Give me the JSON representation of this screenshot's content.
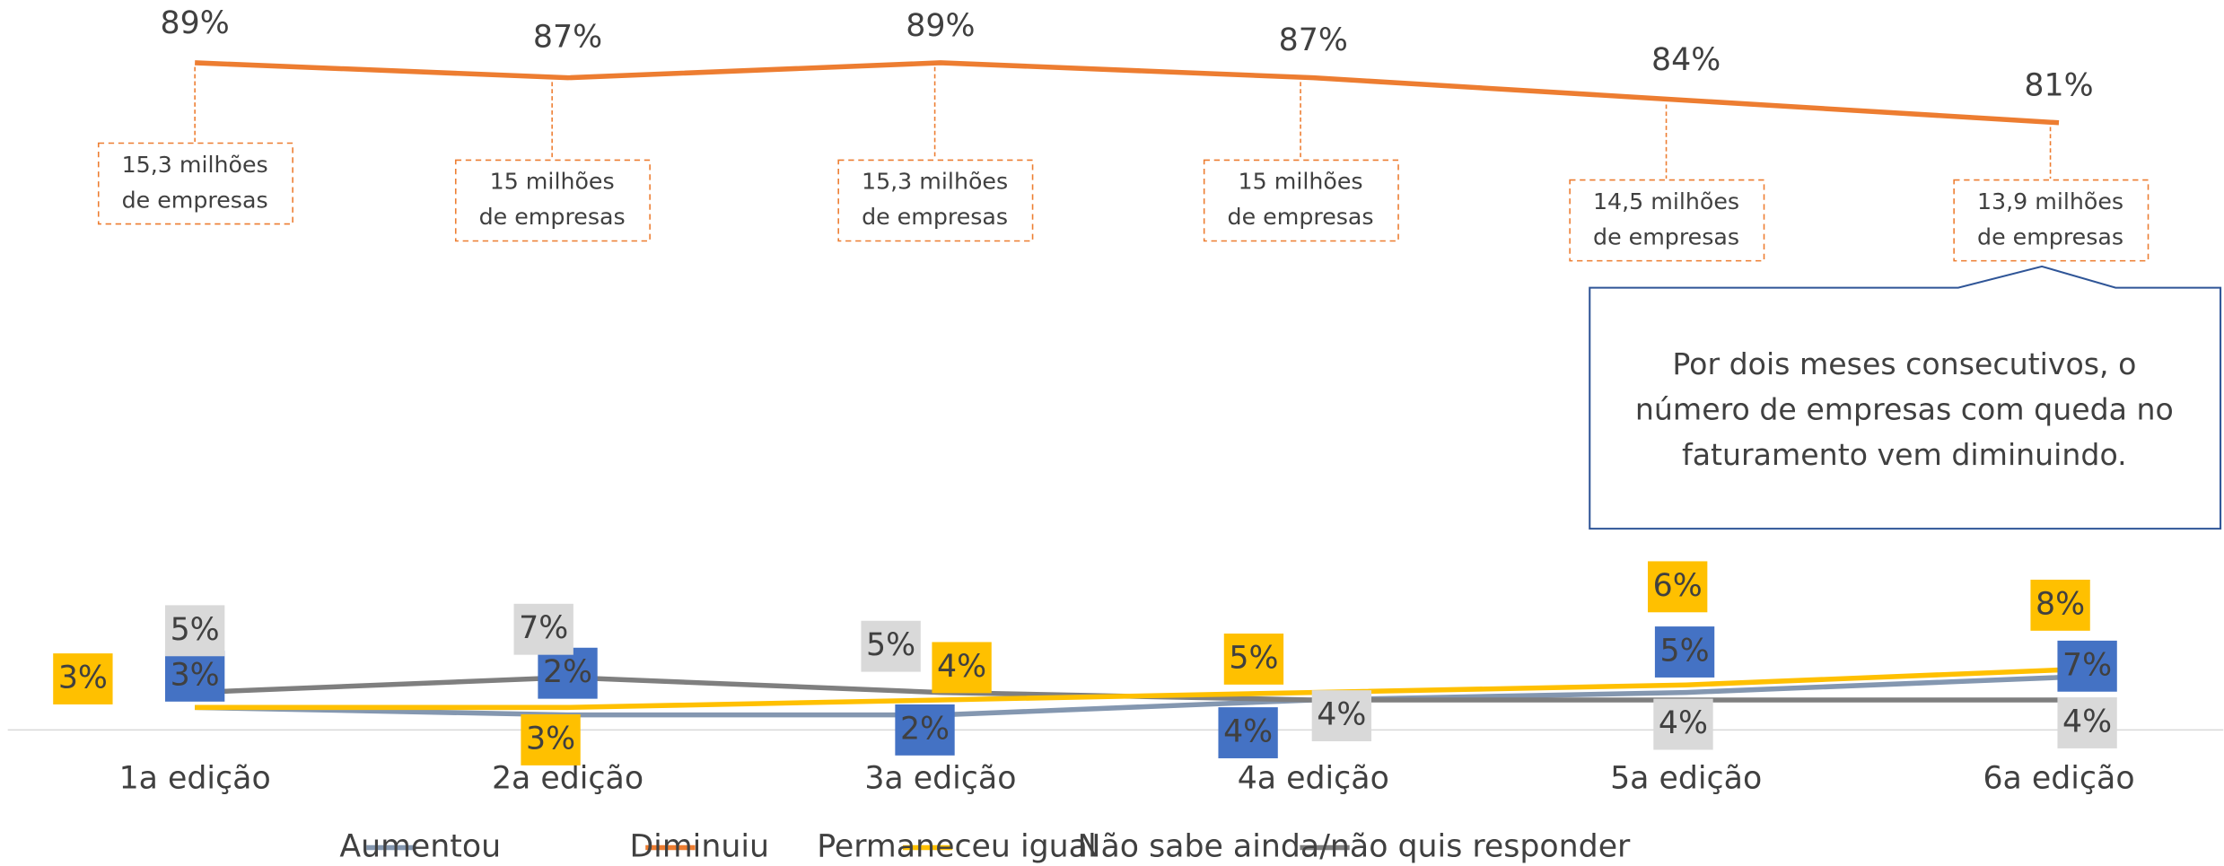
{
  "chart_data": {
    "type": "line",
    "categories": [
      "1a edição",
      "2a edição",
      "3a edição",
      "4a edição",
      "5a edição",
      "6a edição"
    ],
    "ylim": [
      0,
      90
    ],
    "series": [
      {
        "name": "Aumentou",
        "color": "#8497b0",
        "label_color": "#4472c4",
        "values": [
          3,
          2,
          2,
          4,
          5,
          7
        ],
        "value_labels": [
          "3%",
          "2%",
          "2%",
          "4%",
          "5%",
          "7%"
        ]
      },
      {
        "name": "Diminuiu",
        "color": "#ed7d31",
        "values": [
          89,
          87,
          89,
          87,
          84,
          81
        ],
        "value_labels": [
          "89%",
          "87%",
          "89%",
          "87%",
          "84%",
          "81%"
        ]
      },
      {
        "name": "Permaneceu igual",
        "color": "#ffc000",
        "label_color": "#ffc000",
        "values": [
          3,
          3,
          4,
          5,
          6,
          8
        ],
        "value_labels": [
          "3%",
          "3%",
          "4%",
          "5%",
          "6%",
          "8%"
        ]
      },
      {
        "name": "Não sabe ainda/não quis responder",
        "color": "#7f7f7f",
        "label_color": "#d9d9d9",
        "values": [
          5,
          7,
          5,
          4,
          4,
          4
        ],
        "value_labels": [
          "5%",
          "7%",
          "5%",
          "4%",
          "4%",
          "4%"
        ]
      }
    ],
    "annotations": [
      [
        "15,3 milhões",
        "de empresas"
      ],
      [
        "15 milhões",
        "de empresas"
      ],
      [
        "15,3 milhões",
        "de empresas"
      ],
      [
        "15 milhões",
        "de empresas"
      ],
      [
        "14,5 milhões",
        "de empresas"
      ],
      [
        "13,9 milhões",
        "de empresas"
      ]
    ],
    "callout": [
      "Por dois meses consecutivos, o",
      "número de empresas com queda no",
      "faturamento vem diminuindo."
    ]
  }
}
